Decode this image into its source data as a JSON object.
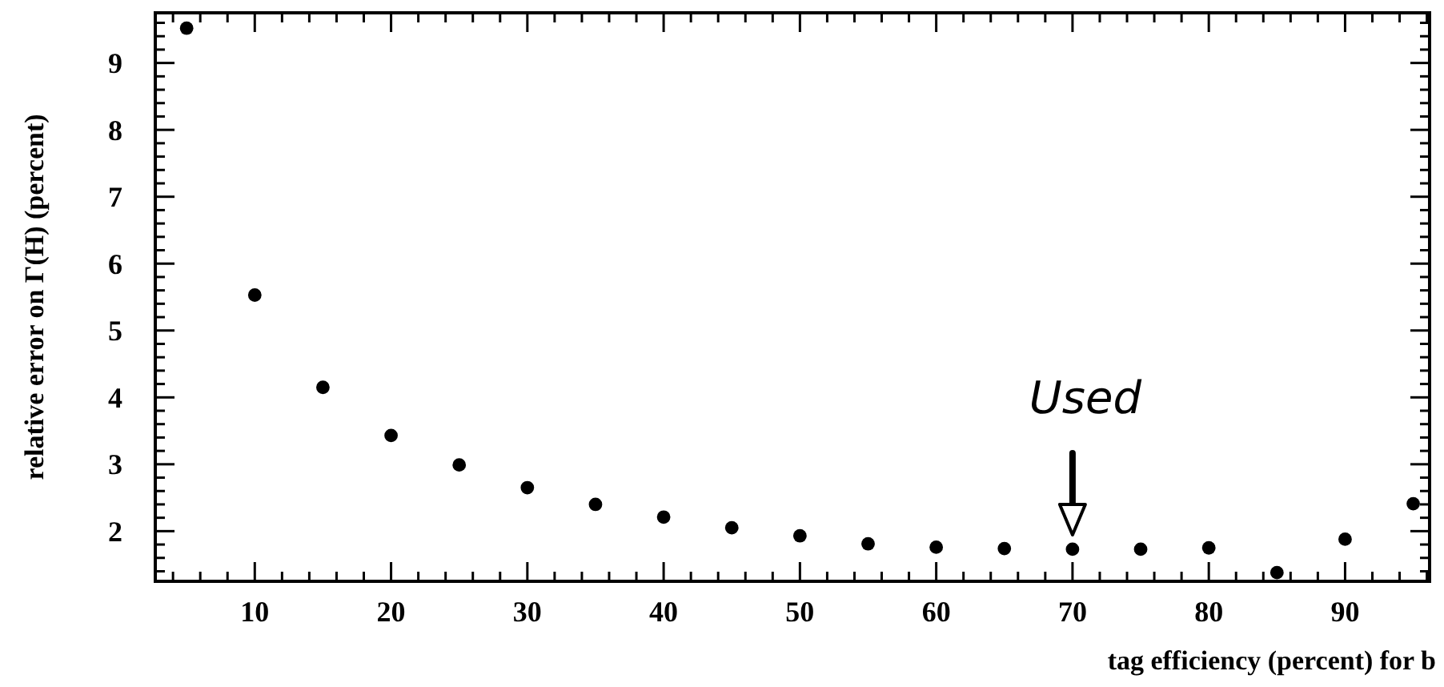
{
  "chart_data": {
    "type": "scatter",
    "xlabel": "tag efficiency (percent) for b",
    "ylabel": "relative error on Γ(H) (percent)",
    "x": [
      5,
      10,
      15,
      20,
      25,
      30,
      35,
      40,
      45,
      50,
      55,
      60,
      65,
      70,
      75,
      80,
      85,
      90,
      95
    ],
    "values": [
      9.52,
      5.53,
      4.15,
      3.43,
      2.99,
      2.65,
      2.4,
      2.21,
      2.05,
      1.93,
      1.81,
      1.76,
      1.74,
      1.73,
      1.73,
      1.75,
      1.38,
      1.88,
      2.41
    ],
    "color": "#000000",
    "marker": "circle",
    "grid": false,
    "xlim": [
      2.7,
      96.2
    ],
    "ylim": [
      1.25,
      9.75
    ],
    "xticks": [
      {
        "value": 4,
        "label": null
      },
      {
        "value": 6,
        "label": null
      },
      {
        "value": 8,
        "label": null
      },
      10,
      {
        "value": 12,
        "label": null
      },
      {
        "value": 14,
        "label": null
      },
      {
        "value": 16,
        "label": null
      },
      {
        "value": 18,
        "label": null
      },
      20,
      {
        "value": 22,
        "label": null
      },
      {
        "value": 24,
        "label": null
      },
      {
        "value": 26,
        "label": null
      },
      {
        "value": 28,
        "label": null
      },
      30,
      {
        "value": 32,
        "label": null
      },
      {
        "value": 34,
        "label": null
      },
      {
        "value": 36,
        "label": null
      },
      {
        "value": 38,
        "label": null
      },
      40,
      {
        "value": 42,
        "label": null
      },
      {
        "value": 44,
        "label": null
      },
      {
        "value": 46,
        "label": null
      },
      {
        "value": 48,
        "label": null
      },
      50,
      {
        "value": 52,
        "label": null
      },
      {
        "value": 54,
        "label": null
      },
      {
        "value": 56,
        "label": null
      },
      {
        "value": 58,
        "label": null
      },
      60,
      {
        "value": 62,
        "label": null
      },
      {
        "value": 64,
        "label": null
      },
      {
        "value": 66,
        "label": null
      },
      {
        "value": 68,
        "label": null
      },
      70,
      {
        "value": 72,
        "label": null
      },
      {
        "value": 74,
        "label": null
      },
      {
        "value": 76,
        "label": null
      },
      {
        "value": 78,
        "label": null
      },
      80,
      {
        "value": 82,
        "label": null
      },
      {
        "value": 84,
        "label": null
      },
      {
        "value": 86,
        "label": null
      },
      {
        "value": 88,
        "label": null
      },
      90,
      {
        "value": 92,
        "label": null
      },
      {
        "value": 94,
        "label": null
      },
      {
        "value": 96,
        "label": null
      }
    ],
    "yticks": [
      {
        "value": 1.4,
        "label": null
      },
      {
        "value": 1.6,
        "label": null
      },
      {
        "value": 1.8,
        "label": null
      },
      2,
      {
        "value": 2.2,
        "label": null
      },
      {
        "value": 2.4,
        "label": null
      },
      {
        "value": 2.6,
        "label": null
      },
      {
        "value": 2.8,
        "label": null
      },
      3,
      {
        "value": 3.2,
        "label": null
      },
      {
        "value": 3.4,
        "label": null
      },
      {
        "value": 3.6,
        "label": null
      },
      {
        "value": 3.8,
        "label": null
      },
      4,
      {
        "value": 4.2,
        "label": null
      },
      {
        "value": 4.4,
        "label": null
      },
      {
        "value": 4.6,
        "label": null
      },
      {
        "value": 4.8,
        "label": null
      },
      5,
      {
        "value": 5.2,
        "label": null
      },
      {
        "value": 5.4,
        "label": null
      },
      {
        "value": 5.6,
        "label": null
      },
      {
        "value": 5.8,
        "label": null
      },
      6,
      {
        "value": 6.2,
        "label": null
      },
      {
        "value": 6.4,
        "label": null
      },
      {
        "value": 6.6,
        "label": null
      },
      {
        "value": 6.8,
        "label": null
      },
      7,
      {
        "value": 7.2,
        "label": null
      },
      {
        "value": 7.4,
        "label": null
      },
      {
        "value": 7.6,
        "label": null
      },
      {
        "value": 7.8,
        "label": null
      },
      8,
      {
        "value": 8.2,
        "label": null
      },
      {
        "value": 8.4,
        "label": null
      },
      {
        "value": 8.6,
        "label": null
      },
      {
        "value": 8.8,
        "label": null
      },
      9,
      {
        "value": 9.2,
        "label": null
      },
      {
        "value": 9.4,
        "label": null
      },
      {
        "value": 9.6,
        "label": null
      }
    ],
    "annotations": [
      {
        "text": "Used",
        "x": 70,
        "y": 1.73
      }
    ]
  }
}
